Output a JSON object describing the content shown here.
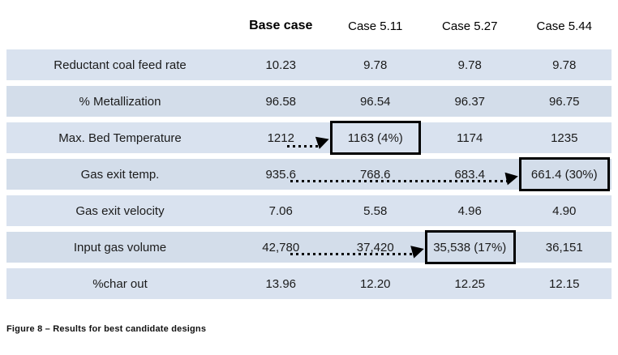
{
  "table": {
    "columns": [
      "",
      "Base case",
      "Case 5.11",
      "Case 5.27",
      "Case 5.44"
    ],
    "rows": [
      {
        "label": "Reductant coal feed rate",
        "values": [
          "10.23",
          "9.78",
          "9.78",
          "9.78"
        ]
      },
      {
        "label": "% Metallization",
        "values": [
          "96.58",
          "96.54",
          "96.37",
          "96.75"
        ]
      },
      {
        "label": "Max. Bed Temperature",
        "values": [
          "1212",
          "1163 (4%)",
          "1174",
          "1235"
        ]
      },
      {
        "label": "Gas exit temp.",
        "values": [
          "935.6",
          "768.6",
          "683.4",
          "661.4 (30%)"
        ]
      },
      {
        "label": "Gas exit velocity",
        "values": [
          "7.06",
          "5.58",
          "4.96",
          "4.90"
        ]
      },
      {
        "label": "Input gas volume",
        "values": [
          "42,780",
          "37,420",
          "35,538 (17%)",
          "36,151"
        ]
      },
      {
        "label": "%char out",
        "values": [
          "13.96",
          "12.20",
          "12.25",
          "12.15"
        ]
      }
    ]
  },
  "annotations": {
    "highlighted_cells": [
      {
        "row": "Max. Bed Temperature",
        "column": "Case 5.11",
        "value": "1163 (4%)"
      },
      {
        "row": "Gas exit temp.",
        "column": "Case 5.44",
        "value": "661.4 (30%)"
      },
      {
        "row": "Input gas volume",
        "column": "Case 5.27",
        "value": "35,538 (17%)"
      }
    ],
    "arrows": [
      {
        "from": "Base case 1212",
        "to": "Case 5.11 1163 (4%)"
      },
      {
        "from": "Base case 935.6",
        "to": "Case 5.44 661.4 (30%)"
      },
      {
        "from": "Base case 42,780",
        "to": "Case 5.27 35,538 (17%)"
      }
    ]
  },
  "caption": "Figure 8 – Results for best candidate designs",
  "colors": {
    "row_band_a": "#d9e2ef",
    "row_band_b": "#d3ddea",
    "highlight_border": "#000000",
    "arrow": "#000000"
  }
}
